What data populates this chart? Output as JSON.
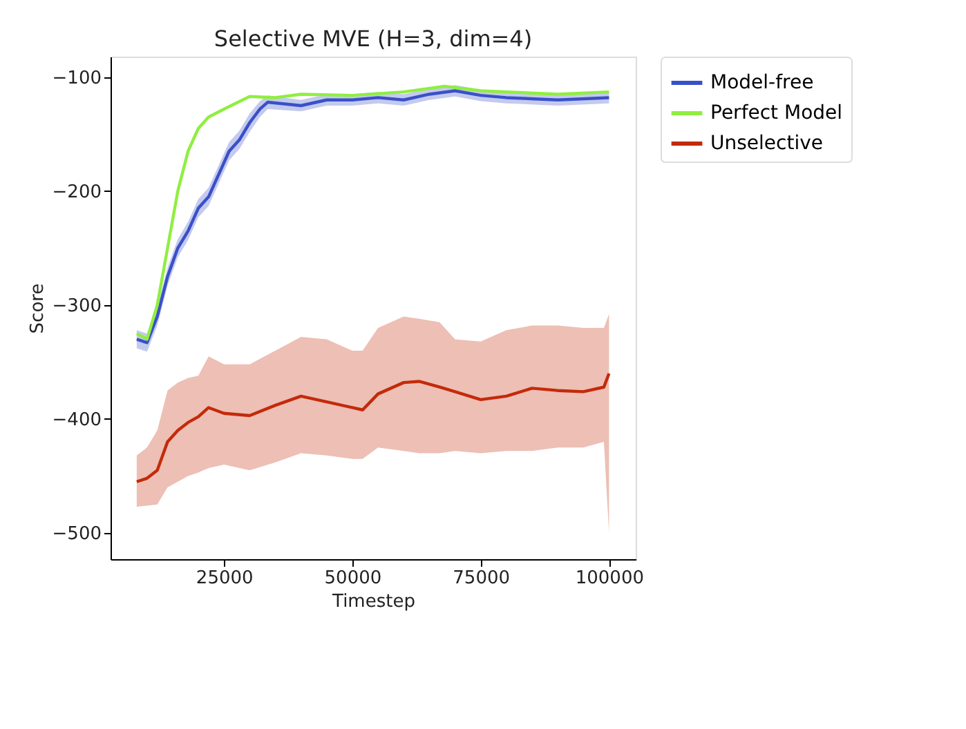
{
  "chart_data": {
    "type": "line",
    "title": "Selective MVE (H=3, dim=4)",
    "xlabel": "Timestep",
    "ylabel": "Score",
    "xlim": [
      2900,
      105200
    ],
    "ylim": [
      -523,
      -82
    ],
    "xticks": [
      25000,
      50000,
      75000,
      100000
    ],
    "yticks": [
      -500,
      -400,
      -300,
      -200,
      -100
    ],
    "grid": false,
    "legend": "top right",
    "line_style": "solid",
    "series": [
      {
        "name": "Model-free",
        "color": "#3a50c8",
        "x": [
          8000,
          10000,
          12000,
          14000,
          16000,
          18000,
          20000,
          22000,
          24000,
          26000,
          28000,
          30000,
          32000,
          33500,
          40000,
          45000,
          50000,
          55000,
          60000,
          65000,
          70000,
          75000,
          80000,
          90000,
          100000
        ],
        "values": [
          -330,
          -333,
          -310,
          -275,
          -250,
          -235,
          -215,
          -205,
          -185,
          -165,
          -155,
          -140,
          -128,
          -122,
          -125,
          -120,
          -120,
          -118,
          -120,
          -115,
          -112,
          -116,
          -118,
          -120,
          -118
        ],
        "lower": [
          -338,
          -341,
          -318,
          -283,
          -258,
          -243,
          -223,
          -213,
          -193,
          -173,
          -163,
          -148,
          -135,
          -128,
          -130,
          -125,
          -125,
          -123,
          -125,
          -120,
          -117,
          -121,
          -123,
          -125,
          -123
        ],
        "upper": [
          -322,
          -325,
          -302,
          -267,
          -242,
          -227,
          -207,
          -197,
          -177,
          -157,
          -147,
          -132,
          -121,
          -116,
          -120,
          -115,
          -115,
          -113,
          -115,
          -110,
          -107,
          -111,
          -113,
          -115,
          -113
        ]
      },
      {
        "name": "Perfect Model",
        "color": "#90ee40",
        "x": [
          8000,
          10000,
          12000,
          14000,
          16000,
          18000,
          20000,
          22000,
          25000,
          30000,
          35000,
          40000,
          50000,
          60000,
          68000,
          75000,
          80000,
          90000,
          100000
        ],
        "values": [
          -325,
          -330,
          -300,
          -250,
          -200,
          -165,
          -145,
          -135,
          -128,
          -117,
          -118,
          -115,
          -116,
          -113,
          -108,
          -112,
          -113,
          -115,
          -113
        ]
      },
      {
        "name": "Unselective",
        "color": "#c42a0a",
        "x": [
          8000,
          10000,
          12000,
          14000,
          16000,
          18000,
          20000,
          22000,
          25000,
          30000,
          35000,
          40000,
          45000,
          50000,
          52000,
          55000,
          60000,
          63000,
          67000,
          70000,
          75000,
          80000,
          85000,
          90000,
          95000,
          99000,
          100000
        ],
        "values": [
          -455,
          -452,
          -445,
          -420,
          -410,
          -403,
          -398,
          -390,
          -395,
          -397,
          -388,
          -380,
          -385,
          -390,
          -392,
          -378,
          -368,
          -367,
          -372,
          -376,
          -383,
          -380,
          -373,
          -375,
          -376,
          -372,
          -360
        ],
        "upper": [
          -432,
          -425,
          -410,
          -375,
          -368,
          -364,
          -362,
          -345,
          -352,
          -352,
          -340,
          -328,
          -330,
          -340,
          -340,
          -320,
          -310,
          -312,
          -315,
          -330,
          -332,
          -322,
          -318,
          -318,
          -320,
          -320,
          -308
        ],
        "lower": [
          -477,
          -476,
          -475,
          -460,
          -455,
          -450,
          -447,
          -443,
          -440,
          -445,
          -438,
          -430,
          -432,
          -435,
          -435,
          -425,
          -428,
          -430,
          -430,
          -428,
          -430,
          -428,
          -428,
          -425,
          -425,
          -420,
          -500
        ]
      }
    ]
  }
}
